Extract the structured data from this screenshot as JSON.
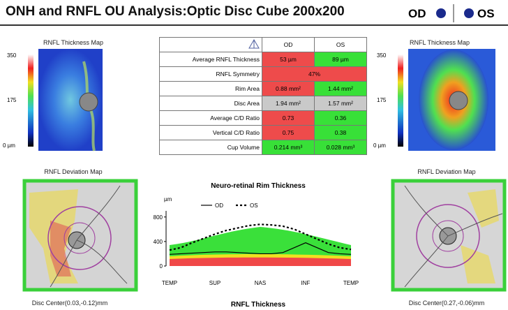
{
  "header": {
    "title": "ONH and RNFL OU Analysis:Optic Disc Cube 200x200",
    "od": "OD",
    "os": "OS"
  },
  "left_panel": {
    "thickness_title": "RNFL Thickness Map",
    "scale": [
      "350",
      "175",
      "0 µm"
    ],
    "deviation_title": "RNFL Deviation Map",
    "disc_center": "Disc Center(0.03,-0.12)mm"
  },
  "right_panel": {
    "thickness_title": "RNFL Thickness Map",
    "scale": [
      "350",
      "175",
      "0 µm"
    ],
    "deviation_title": "RNFL Deviation Map",
    "disc_center": "Disc Center(0.27,-0.06)mm"
  },
  "table": {
    "columns": [
      "OD",
      "OS"
    ],
    "rows": [
      [
        "Average RNFL Thickness",
        "53 µm",
        "89 µm"
      ],
      [
        "RNFL Symmetry",
        "47%"
      ],
      [
        "Rim Area",
        "0.88 mm²",
        "1.44 mm²"
      ],
      [
        "Disc Area",
        "1.94 mm²",
        "1.57 mm²"
      ],
      [
        "Average C/D Ratio",
        "0.73",
        "0.36"
      ],
      [
        "Vertical C/D Ratio",
        "0.75",
        "0.38"
      ],
      [
        "Cup Volume",
        "0.214 mm³",
        "0.028 mm³"
      ]
    ]
  },
  "chart_data": {
    "type": "line",
    "title": "Neuro-retinal Rim Thickness",
    "y_label": "µm",
    "x": [
      0,
      1,
      2,
      3,
      4,
      5,
      6,
      7,
      8,
      9,
      10,
      11,
      12,
      13,
      14,
      15,
      16
    ],
    "series": [
      {
        "name": "OD",
        "color": "#000000",
        "dash": false,
        "values": [
          190,
          200,
          210,
          220,
          230,
          230,
          220,
          210,
          200,
          200,
          220,
          300,
          380,
          300,
          220,
          200,
          190
        ]
      },
      {
        "name": "OS",
        "color": "#000000",
        "dash": true,
        "values": [
          260,
          300,
          380,
          450,
          520,
          580,
          620,
          660,
          680,
          670,
          650,
          600,
          520,
          440,
          360,
          300,
          270
        ]
      }
    ],
    "xlim": [
      0,
      16
    ],
    "xticks": [
      {
        "value": 0,
        "label": "TEMP"
      },
      {
        "value": 4,
        "label": "SUP"
      },
      {
        "value": 8,
        "label": "NAS"
      },
      {
        "value": 12,
        "label": "INF"
      },
      {
        "value": 16,
        "label": "TEMP"
      }
    ],
    "ylim": [
      0,
      900
    ],
    "yticks": [
      0,
      400,
      800
    ]
  },
  "footer": "RNFL Thickness"
}
